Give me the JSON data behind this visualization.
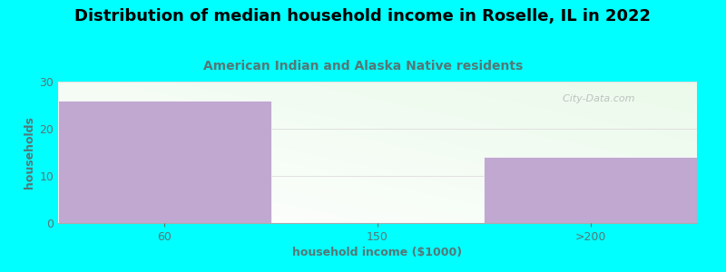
{
  "title": "Distribution of median household income in Roselle, IL in 2022",
  "subtitle": "American Indian and Alaska Native residents",
  "xlabel": "household income ($1000)",
  "ylabel": "households",
  "categories": [
    "60",
    "150",
    ">200"
  ],
  "values": [
    26,
    0,
    14
  ],
  "bar_color": "#c0a8d0",
  "background_color": "#00ffff",
  "ylim": [
    0,
    30
  ],
  "yticks": [
    0,
    10,
    20,
    30
  ],
  "grid_color": "#e0e0e0",
  "title_fontsize": 13,
  "subtitle_fontsize": 10,
  "subtitle_color": "#557777",
  "axis_label_color": "#557777",
  "axis_label_fontsize": 9,
  "tick_color": "#557777",
  "watermark": "  City-Data.com"
}
